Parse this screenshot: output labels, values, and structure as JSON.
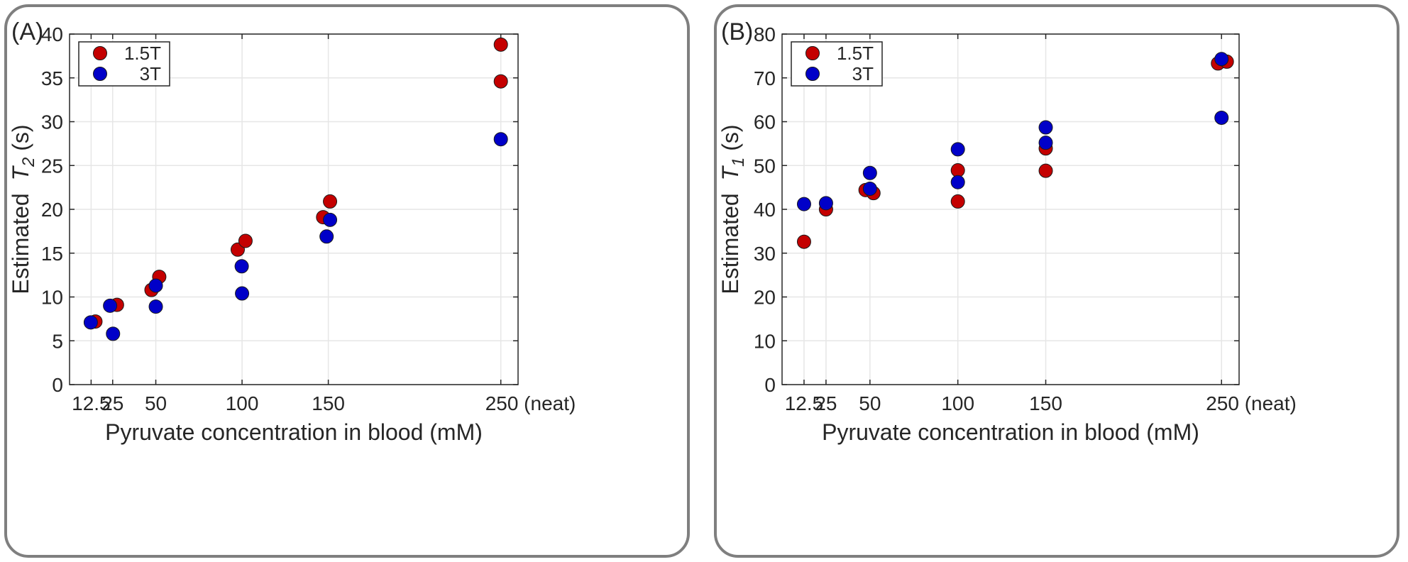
{
  "colors": {
    "series_1.5T": "#c40000",
    "series_3T": "#0000c8",
    "marker_edge": "#3a0000",
    "grid": "#e6e6e6",
    "axes": "#262626",
    "panel_border": "#7f7f7f"
  },
  "chart_data": [
    {
      "type": "scatter",
      "panel_label": "(A)",
      "xlabel": "Pyruvate concentration in blood (mM)",
      "ylabel_prefix": "Estimated",
      "ylabel_symbol": "T",
      "ylabel_subscript": "2",
      "ylabel_suffix": "(s)",
      "xlim": [
        0,
        260
      ],
      "ylim": [
        0,
        40
      ],
      "x_ticks": [
        12.5,
        25,
        50,
        100,
        150,
        250
      ],
      "x_tick_labels": [
        "12.5",
        "25",
        "50",
        "100",
        "150",
        "250 (neat)"
      ],
      "y_ticks": [
        0,
        5,
        10,
        15,
        20,
        25,
        30,
        35,
        40
      ],
      "y_tick_labels": [
        "0",
        "5",
        "10",
        "15",
        "20",
        "25",
        "30",
        "35",
        "40"
      ],
      "grid": true,
      "legend_position": "top-left",
      "series": [
        {
          "name": "1.5T",
          "points": [
            [
              15,
              7.2
            ],
            [
              27.5,
              9.1
            ],
            [
              47.5,
              10.8
            ],
            [
              52,
              12.3
            ],
            [
              97.5,
              15.4
            ],
            [
              102,
              16.4
            ],
            [
              147,
              19.1
            ],
            [
              151,
              20.9
            ],
            [
              250,
              38.8
            ],
            [
              250,
              34.6
            ]
          ]
        },
        {
          "name": "3T",
          "points": [
            [
              12.3,
              7.1
            ],
            [
              23.5,
              9.0
            ],
            [
              25.2,
              5.8
            ],
            [
              50,
              11.3
            ],
            [
              50,
              8.9
            ],
            [
              99.8,
              13.5
            ],
            [
              100,
              10.4
            ],
            [
              149,
              16.9
            ],
            [
              151,
              18.8
            ],
            [
              250,
              28.0
            ]
          ]
        }
      ]
    },
    {
      "type": "scatter",
      "panel_label": "(B)",
      "xlabel": "Pyruvate concentration in blood (mM)",
      "ylabel_prefix": "Estimated",
      "ylabel_symbol": "T",
      "ylabel_subscript": "1",
      "ylabel_suffix": "(s)",
      "xlim": [
        0,
        260
      ],
      "ylim": [
        0,
        80
      ],
      "x_ticks": [
        12.5,
        25,
        50,
        100,
        150,
        250
      ],
      "x_tick_labels": [
        "12.5",
        "25",
        "50",
        "100",
        "150",
        "250 (neat)"
      ],
      "y_ticks": [
        0,
        10,
        20,
        30,
        40,
        50,
        60,
        70,
        80
      ],
      "y_tick_labels": [
        "0",
        "10",
        "20",
        "30",
        "40",
        "50",
        "60",
        "70",
        "80"
      ],
      "grid": true,
      "legend_position": "top-left",
      "series": [
        {
          "name": "1.5T",
          "points": [
            [
              12.5,
              32.6
            ],
            [
              25,
              40.0
            ],
            [
              47.5,
              44.4
            ],
            [
              52,
              43.7
            ],
            [
              100,
              48.9
            ],
            [
              100,
              41.8
            ],
            [
              150,
              53.9
            ],
            [
              150,
              48.8
            ],
            [
              248,
              73.3
            ],
            [
              253,
              73.7
            ]
          ]
        },
        {
          "name": "3T",
          "points": [
            [
              12.5,
              41.2
            ],
            [
              25,
              41.4
            ],
            [
              50,
              48.3
            ],
            [
              50,
              44.7
            ],
            [
              100,
              53.7
            ],
            [
              100,
              46.2
            ],
            [
              150,
              58.7
            ],
            [
              150,
              55.2
            ],
            [
              250,
              74.3
            ],
            [
              250,
              60.9
            ]
          ]
        }
      ]
    }
  ]
}
